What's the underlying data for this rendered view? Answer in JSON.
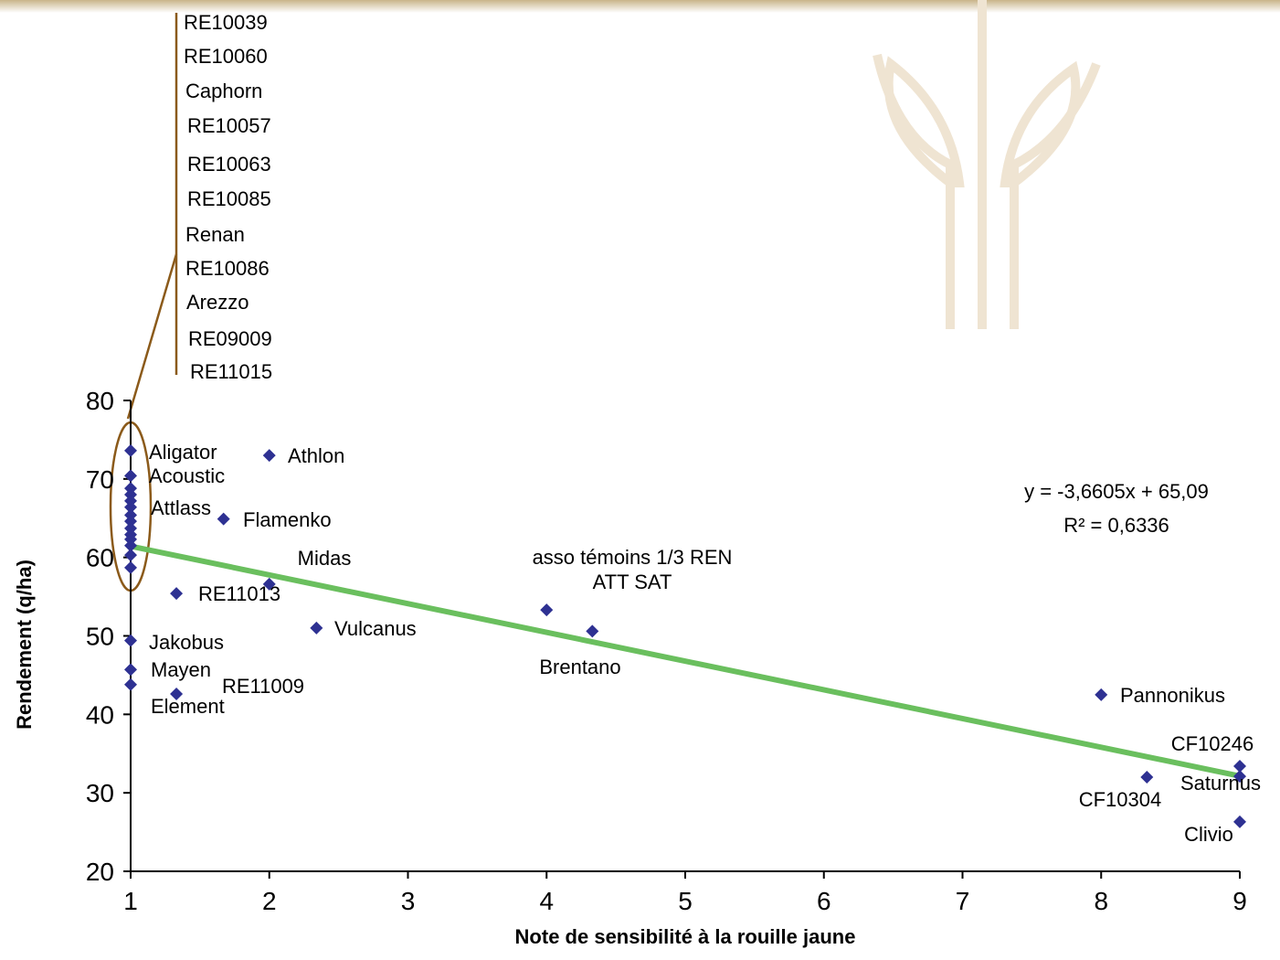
{
  "chart_data": {
    "type": "scatter",
    "x_label": "Note de sensibilité à la rouille jaune",
    "y_label": "Rendement (q/ha)",
    "xlim": [
      1,
      9
    ],
    "xticks": [
      1,
      2,
      3,
      4,
      5,
      6,
      7,
      8,
      9
    ],
    "ylim": [
      20,
      80
    ],
    "yticks": [
      20,
      30,
      40,
      50,
      60,
      70,
      80
    ],
    "series": [
      {
        "color": "#2e3192",
        "x": [
          1,
          1,
          1,
          1,
          1,
          1,
          2,
          1.67,
          1.33,
          2,
          2.34,
          1.33,
          4,
          4.33,
          8,
          9,
          9,
          8.33,
          9
        ],
        "values": [
          73.6,
          70.4,
          65.4,
          49.4,
          45.7,
          43.8,
          73.0,
          64.9,
          55.4,
          56.6,
          51.0,
          42.6,
          53.3,
          50.6,
          42.5,
          33.4,
          32.1,
          32.0,
          26.3
        ],
        "labels": [
          "Aligator",
          "Acoustic",
          "Attlass",
          "Jakobus",
          "Mayen",
          "Element",
          "Athlon",
          "Flamenko",
          "RE11013",
          "Midas",
          "Vulcanus",
          "RE11009",
          "asso témoins 1/3 REN\nATT SAT",
          "Brentano",
          "Pannonikus",
          "CF10246",
          "Saturnus",
          "CF10304",
          "Clivio"
        ]
      },
      {
        "color": "#2e3192",
        "x": [
          1,
          1,
          1,
          1,
          1,
          1,
          1,
          1,
          1,
          1,
          1
        ],
        "values": [
          68.8,
          68.0,
          67.2,
          66.4,
          64.6,
          63.7,
          62.9,
          62.3,
          61.5,
          60.3,
          58.7
        ],
        "labels": [
          "RE10039",
          "RE10060",
          "Caphorn",
          "RE10057",
          "RE10063",
          "RE10085",
          "Renan",
          "RE10086",
          "Arezzo",
          "RE09009",
          "RE11015"
        ]
      }
    ],
    "trendline": {
      "slope": -3.6605,
      "intercept": 65.09,
      "color": "#6abf5e",
      "equation": "y = -3,6605x + 65,09",
      "r2": "R² = 0,6336"
    }
  }
}
